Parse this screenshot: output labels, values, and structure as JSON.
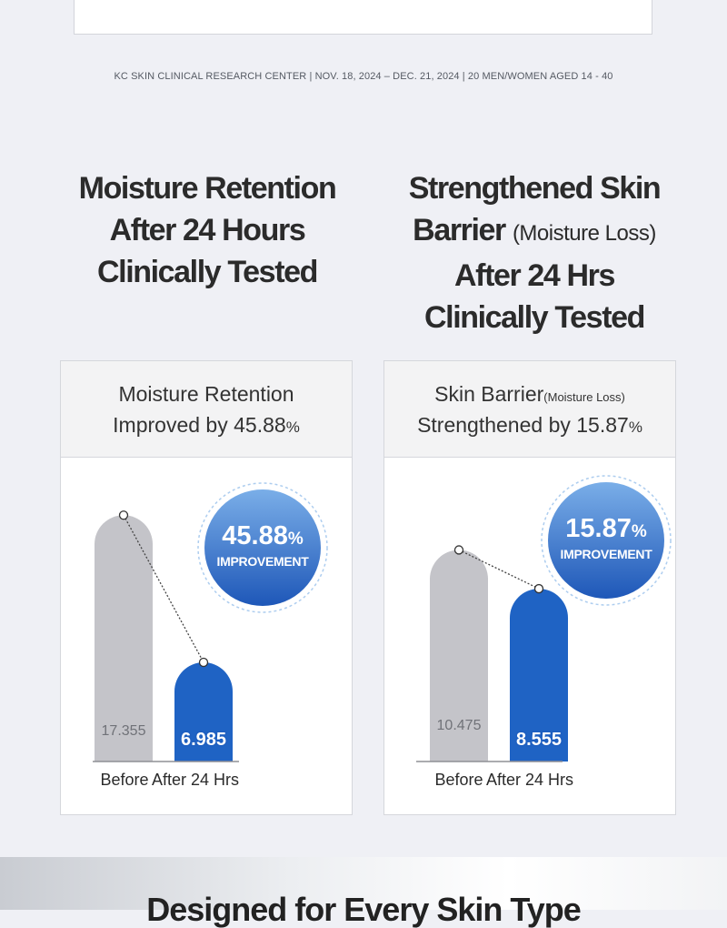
{
  "source_note": "KC SKIN CLINICAL RESEARCH CENTER | NOV. 18, 2024 – DEC. 21, 2024 | 20 MEN/WOMEN AGED 14 - 40",
  "heading_left": {
    "line1": "Moisture Retention",
    "line2": "After 24 Hours",
    "line3": "Clinically Tested"
  },
  "heading_right": {
    "line1": "Strengthened Skin",
    "line2_main": "Barrier",
    "line2_sub": "(Moisture Loss)",
    "line3": "After 24 Hrs",
    "line4": "Clinically Tested"
  },
  "panel_left": {
    "title_line1": "Moisture Retention",
    "title_line2_text": "Improved by 45.88",
    "title_line2_pct": "%",
    "badge_number": "45.88",
    "badge_pct": "%",
    "badge_text": "IMPROVEMENT"
  },
  "panel_right": {
    "title_line1_main": "Skin Barrier",
    "title_line1_sub": "(Moisture Loss)",
    "title_line2_text": "Strengthened by 15.87",
    "title_line2_pct": "%",
    "badge_number": "15.87",
    "badge_pct": "%",
    "badge_text": "IMPROVEMENT"
  },
  "bottom_title": "Designed for Every Skin Type",
  "colors": {
    "before_bar": "#c4c4c9",
    "after_bar": "#1f63c4",
    "badge_light": "#7aaee8",
    "badge_dark": "#1e57b8",
    "background": "#eff0f5"
  },
  "chart_data": [
    {
      "type": "bar",
      "categories": [
        "Before",
        "After 24 Hrs"
      ],
      "values": [
        17.355,
        6.985
      ],
      "value_labels": [
        "17.355",
        "6.985"
      ],
      "improvement": "45.88% IMPROVEMENT"
    },
    {
      "type": "bar",
      "categories": [
        "Before",
        "After 24 Hrs"
      ],
      "values": [
        10.475,
        8.555
      ],
      "value_labels": [
        "10.475",
        "8.555"
      ],
      "improvement": "15.87% IMPROVEMENT"
    }
  ]
}
